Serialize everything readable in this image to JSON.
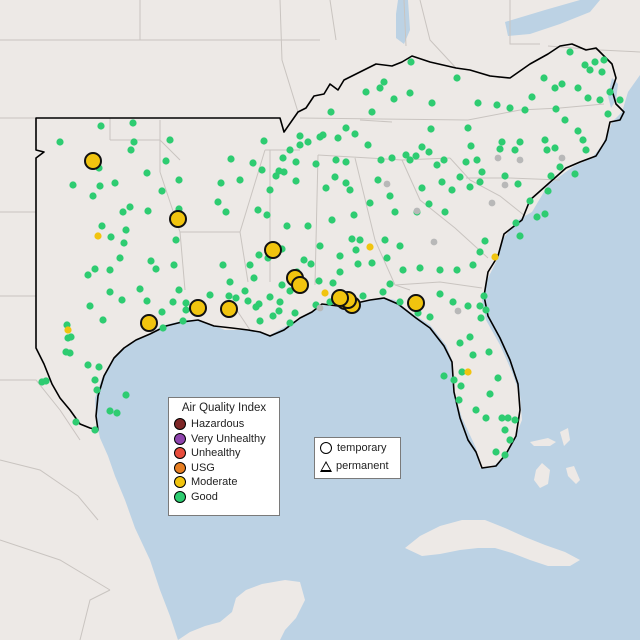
{
  "legend": {
    "title": "Air Quality Index",
    "categories": [
      {
        "label": "Hazardous",
        "color": "#7e2727"
      },
      {
        "label": "Very Unhealthy",
        "color": "#8e44ad"
      },
      {
        "label": "Unhealthy",
        "color": "#e74c3c"
      },
      {
        "label": "USG",
        "color": "#e67e22"
      },
      {
        "label": "Moderate",
        "color": "#f1c40f"
      },
      {
        "label": "Good",
        "color": "#2ecc71"
      }
    ]
  },
  "monitor_types": {
    "temporary": "temporary",
    "permanent": "permanent"
  },
  "colors": {
    "water": "#bcd2e4",
    "land": "#ede9e6",
    "state_border": "#c9c4c0",
    "region_outline": "#000000",
    "good": "#2ecc71",
    "moderate": "#f1c40f",
    "no_data": "#b8b8b8"
  },
  "monitors": {
    "moderate_large": 13,
    "moderate_small": 6,
    "good": 260,
    "no_data": 10
  }
}
